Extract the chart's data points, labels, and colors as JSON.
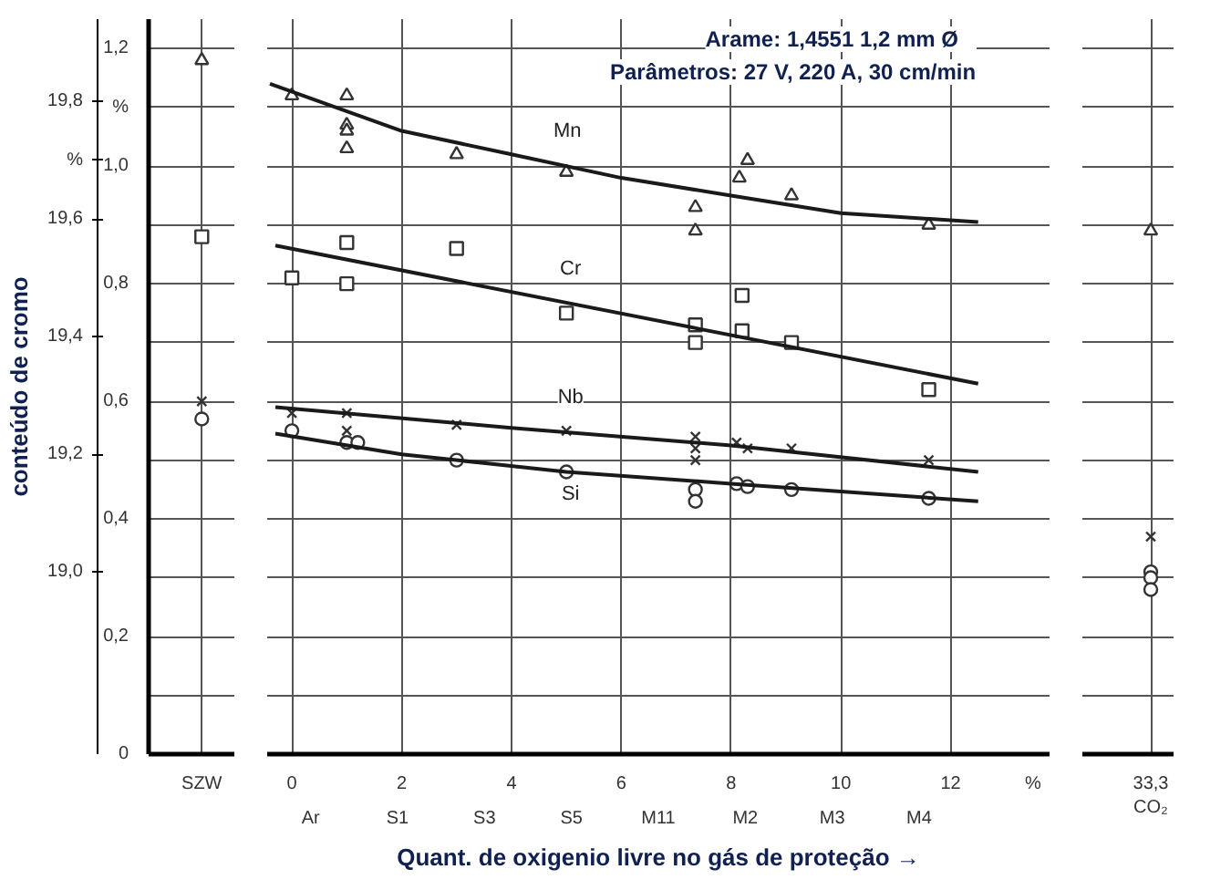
{
  "chart_data": [
    {
      "type": "scatter",
      "categories": [
        "SZW"
      ],
      "ylim": [
        0,
        1.25
      ],
      "y2lim": [
        18.69,
        19.94
      ],
      "y2label": "conteúdo de cromo",
      "grid": true,
      "yticks": [
        0,
        {
          "value": 0.1,
          "label": null
        },
        {
          "value": 0.2,
          "label": "0,2"
        },
        {
          "value": 0.3,
          "label": null
        },
        {
          "value": 0.4,
          "label": "0,4"
        },
        {
          "value": 0.5,
          "label": null
        },
        {
          "value": 0.6,
          "label": "0,6"
        },
        {
          "value": 0.7,
          "label": null
        },
        {
          "value": 0.8,
          "label": "0,8"
        },
        {
          "value": 0.9,
          "label": null
        },
        {
          "value": 1.0,
          "label": "1,0"
        },
        {
          "value": 1.1,
          "label": "%"
        },
        {
          "value": 1.2,
          "label": "1,2"
        }
      ],
      "y2ticks": [
        {
          "value": 19.0,
          "label": "19,0"
        },
        {
          "value": 19.2,
          "label": "19,2"
        },
        {
          "value": 19.4,
          "label": "19,4"
        },
        {
          "value": 19.6,
          "label": "19,6"
        },
        {
          "value": 19.7,
          "label": "%"
        },
        {
          "value": 19.8,
          "label": "19,8"
        }
      ],
      "series": [
        {
          "color": "#333333",
          "marker": "triangle",
          "values": [
            1.18
          ]
        },
        {
          "color": "#333333",
          "marker": "square",
          "axis": "y2",
          "values": [
            19.57
          ]
        },
        {
          "color": "#333333",
          "marker": "cross",
          "values": [
            0.6
          ]
        },
        {
          "color": "#333333",
          "marker": "circle",
          "values": [
            0.57
          ]
        }
      ]
    },
    {
      "type": "scatter",
      "xlim": [
        -0.45,
        13.8
      ],
      "ylim": [
        0,
        1.25
      ],
      "y2lim": [
        18.69,
        19.94
      ],
      "tick_labels": "x",
      "grid": true,
      "xlabel": "Quant. de oxigenio livre no gás de proteção →",
      "xticks": [
        0,
        2,
        4,
        6,
        8,
        10,
        12,
        {
          "value": 13.5,
          "label": "%"
        }
      ],
      "yticks": [
        0,
        0.1,
        0.2,
        0.3,
        0.4,
        0.5,
        0.6,
        0.7,
        0.8,
        0.9,
        1.0,
        1.1,
        1.2
      ],
      "title": "Arame:  1,4551   1,2 mm Ø",
      "subtitle": "Parâmetros: 27 V, 220 A, 30 cm/min",
      "annotations": [
        "Ar",
        "S1",
        "S3",
        "S5",
        "M11",
        "M2",
        "M3",
        "M4"
      ],
      "series": [
        {
          "color": "#333333",
          "marker": "triangle",
          "x": [
            0,
            1,
            1,
            1,
            1,
            3,
            5,
            7.35,
            7.35,
            8.15,
            8.3,
            9.1,
            11.6
          ],
          "values": [
            1.12,
            1.12,
            1.07,
            1.06,
            1.03,
            1.02,
            0.99,
            0.93,
            0.89,
            0.98,
            1.01,
            0.95,
            0.9
          ]
        },
        {
          "type": "line",
          "name": "Mn",
          "color": "#1a1a1a",
          "x": [
            -0.4,
            2,
            4,
            6,
            8,
            10,
            12.5
          ],
          "values": [
            1.14,
            1.06,
            1.02,
            0.98,
            0.95,
            0.92,
            0.905
          ]
        },
        {
          "color": "#333333",
          "marker": "square",
          "axis": "y2",
          "x": [
            0,
            1,
            1,
            3,
            5,
            7.35,
            7.35,
            8.2,
            8.2,
            9.1,
            11.6
          ],
          "values": [
            19.5,
            19.56,
            19.49,
            19.55,
            19.44,
            19.42,
            19.39,
            19.47,
            19.41,
            19.39,
            19.31
          ]
        },
        {
          "type": "line",
          "name": "Cr",
          "color": "#1a1a1a",
          "axis": "y2",
          "x": [
            -0.3,
            12.5
          ],
          "values": [
            19.555,
            19.32
          ]
        },
        {
          "color": "#333333",
          "marker": "cross",
          "x": [
            0,
            1,
            1,
            3,
            5,
            7.35,
            7.35,
            7.35,
            8.1,
            8.3,
            9.1,
            11.6
          ],
          "values": [
            0.58,
            0.58,
            0.55,
            0.56,
            0.55,
            0.54,
            0.52,
            0.5,
            0.53,
            0.52,
            0.52,
            0.5
          ]
        },
        {
          "type": "line",
          "name": "Nb",
          "color": "#1a1a1a",
          "x": [
            -0.3,
            4,
            8,
            12.5
          ],
          "values": [
            0.59,
            0.555,
            0.525,
            0.48
          ]
        },
        {
          "color": "#333333",
          "marker": "circle",
          "x": [
            0,
            1,
            1.2,
            3,
            5,
            7.35,
            7.35,
            8.1,
            8.3,
            9.1,
            11.6
          ],
          "values": [
            0.55,
            0.53,
            0.53,
            0.5,
            0.48,
            0.45,
            0.43,
            0.46,
            0.455,
            0.45,
            0.435
          ]
        },
        {
          "type": "line",
          "name": "Si",
          "color": "#1a1a1a",
          "x": [
            -0.3,
            2,
            5,
            8,
            12.5
          ],
          "values": [
            0.545,
            0.51,
            0.48,
            0.46,
            0.43
          ]
        }
      ]
    },
    {
      "type": "scatter",
      "categories": [
        "33,3 CO₂"
      ],
      "ylim": [
        0,
        1.25
      ],
      "tick_labels": "x",
      "grid": true,
      "yticks": [
        0,
        0.1,
        0.2,
        0.3,
        0.4,
        0.5,
        0.6,
        0.7,
        0.8,
        0.9,
        1.0,
        1.1,
        1.2
      ],
      "series": [
        {
          "color": "#333333",
          "marker": "triangle",
          "values": [
            0.89
          ]
        },
        {
          "color": "#333333",
          "marker": "cross",
          "values": [
            0.37
          ]
        },
        {
          "color": "#333333",
          "marker": "circle",
          "values": [
            0.31
          ]
        },
        {
          "color": "#333333",
          "marker": "circle",
          "values": [
            0.3
          ]
        },
        {
          "color": "#333333",
          "marker": "circle",
          "values": [
            0.28
          ]
        }
      ]
    }
  ]
}
